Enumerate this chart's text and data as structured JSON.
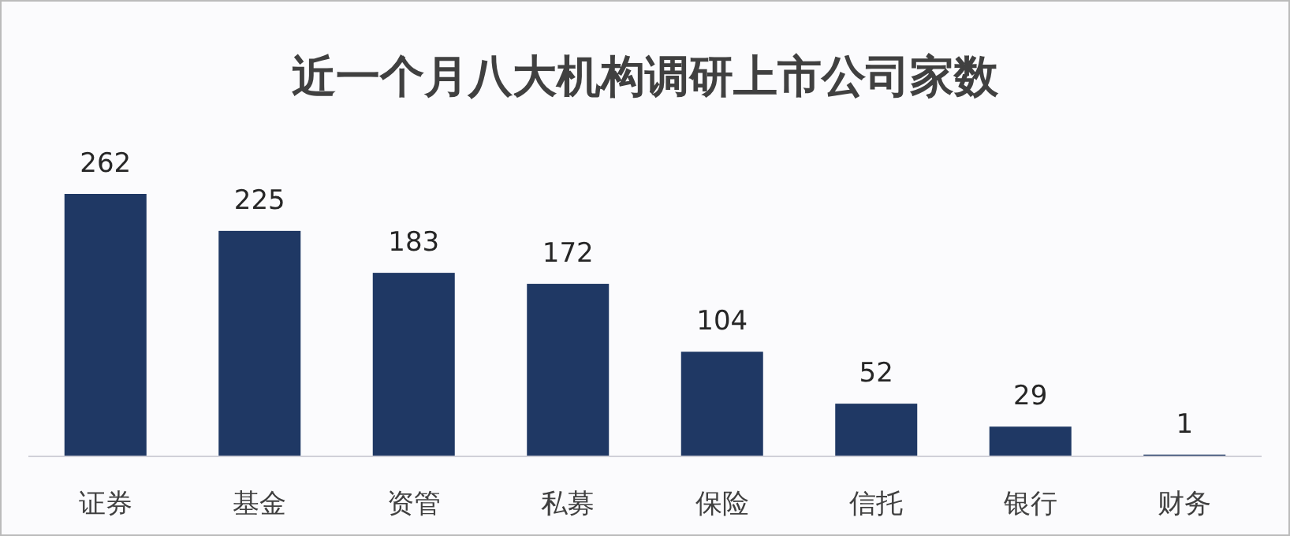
{
  "chart_data": {
    "type": "bar",
    "title": "近一个月八大机构调研上市公司家数",
    "categories": [
      "证券",
      "基金",
      "资管",
      "私募",
      "保险",
      "信托",
      "银行",
      "财务"
    ],
    "values": [
      262,
      225,
      183,
      172,
      104,
      52,
      29,
      1
    ],
    "color": "#1f3864",
    "data_labels": true
  }
}
